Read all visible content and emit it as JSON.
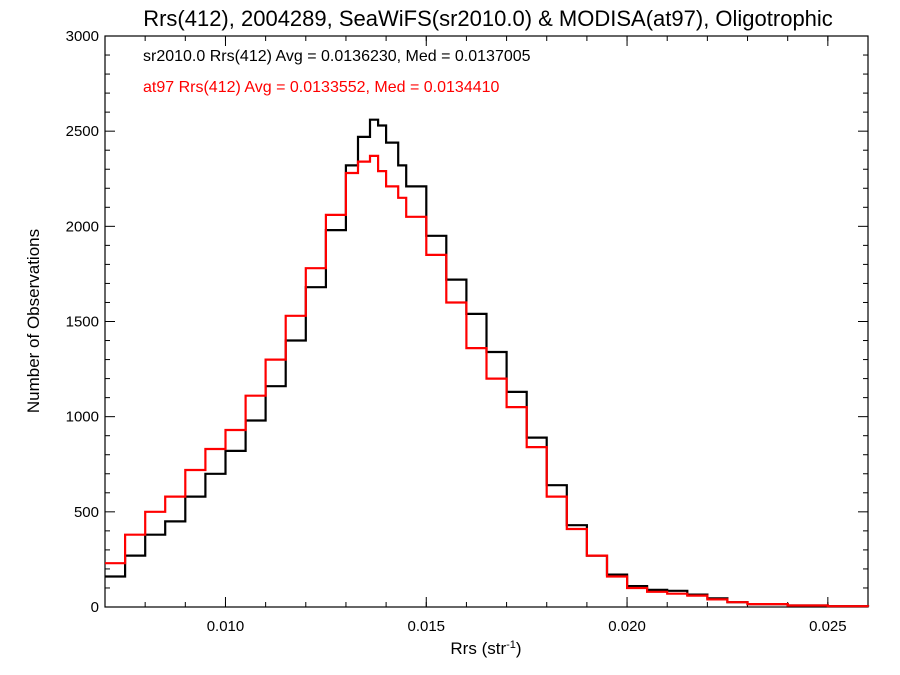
{
  "chart_data": {
    "type": "line",
    "title": "Rrs(412), 2004289, SeaWiFS(sr2010.0) & MODISA(at97), Oligotrophic",
    "xlabel": "Rrs (str",
    "xlabel_sup": "-1",
    "xlabel_close": ")",
    "ylabel": "Number of Observations",
    "xlim": [
      0.007,
      0.026
    ],
    "ylim": [
      0,
      3000
    ],
    "xticks": [
      0.01,
      0.015,
      0.02,
      0.025
    ],
    "xtick_labels": [
      "0.010",
      "0.015",
      "0.020",
      "0.025"
    ],
    "yticks": [
      0,
      500,
      1000,
      1500,
      2000,
      2500,
      3000
    ],
    "ytick_labels": [
      "0",
      "500",
      "1000",
      "1500",
      "2000",
      "2500",
      "3000"
    ],
    "annotations": [
      {
        "text": "sr2010.0 Rrs(412) Avg = 0.0136230, Med = 0.0137005",
        "color": "#000000"
      },
      {
        "text": "at97 Rrs(412) Avg = 0.0133552, Med = 0.0134410",
        "color": "#ff0000"
      }
    ],
    "series": [
      {
        "color": "#000000",
        "style": "step",
        "x": [
          0.007,
          0.0075,
          0.008,
          0.0085,
          0.009,
          0.0095,
          0.01,
          0.0105,
          0.011,
          0.0115,
          0.012,
          0.0125,
          0.013,
          0.0133,
          0.0136,
          0.0138,
          0.014,
          0.0143,
          0.0145,
          0.015,
          0.0155,
          0.016,
          0.0165,
          0.017,
          0.0175,
          0.018,
          0.0185,
          0.019,
          0.0195,
          0.02,
          0.0205,
          0.021,
          0.0215,
          0.022,
          0.0225,
          0.023,
          0.024,
          0.025,
          0.026
        ],
        "values": [
          160,
          270,
          380,
          450,
          580,
          700,
          820,
          980,
          1160,
          1400,
          1680,
          1980,
          2320,
          2470,
          2560,
          2530,
          2440,
          2320,
          2210,
          1950,
          1720,
          1540,
          1340,
          1130,
          890,
          640,
          430,
          270,
          170,
          110,
          90,
          85,
          65,
          45,
          25,
          15,
          8,
          4,
          2
        ]
      },
      {
        "color": "#ff0000",
        "style": "step",
        "x": [
          0.007,
          0.0075,
          0.008,
          0.0085,
          0.009,
          0.0095,
          0.01,
          0.0105,
          0.011,
          0.0115,
          0.012,
          0.0125,
          0.013,
          0.0133,
          0.0136,
          0.0138,
          0.014,
          0.0143,
          0.0145,
          0.015,
          0.0155,
          0.016,
          0.0165,
          0.017,
          0.0175,
          0.018,
          0.0185,
          0.019,
          0.0195,
          0.02,
          0.0205,
          0.021,
          0.0215,
          0.022,
          0.0225,
          0.023,
          0.024,
          0.025,
          0.026
        ],
        "values": [
          230,
          380,
          500,
          580,
          720,
          830,
          930,
          1110,
          1300,
          1530,
          1780,
          2060,
          2280,
          2340,
          2370,
          2290,
          2210,
          2150,
          2050,
          1850,
          1600,
          1360,
          1200,
          1050,
          840,
          580,
          410,
          270,
          160,
          100,
          80,
          70,
          60,
          40,
          25,
          15,
          8,
          4,
          2
        ]
      }
    ]
  }
}
